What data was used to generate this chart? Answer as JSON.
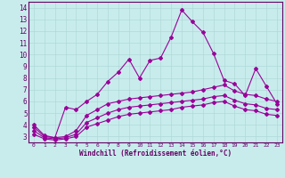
{
  "xlabel": "Windchill (Refroidissement éolien,°C)",
  "bg_color": "#c8ecec",
  "line_color": "#990099",
  "grid_color": "#b0d8d8",
  "text_color": "#660066",
  "axis_color": "#660066",
  "xlim": [
    -0.5,
    23.5
  ],
  "ylim": [
    2.5,
    14.5
  ],
  "xticks": [
    0,
    1,
    2,
    3,
    4,
    5,
    6,
    7,
    8,
    9,
    10,
    11,
    12,
    13,
    14,
    15,
    16,
    17,
    18,
    19,
    20,
    21,
    22,
    23
  ],
  "yticks": [
    3,
    4,
    5,
    6,
    7,
    8,
    9,
    10,
    11,
    12,
    13,
    14
  ],
  "line1_x": [
    0,
    1,
    2,
    3,
    4,
    5,
    6,
    7,
    8,
    9,
    10,
    11,
    12,
    13,
    14,
    15,
    16,
    17,
    18,
    19,
    20,
    21,
    22,
    23
  ],
  "line1_y": [
    4.0,
    3.1,
    2.9,
    5.5,
    5.3,
    6.0,
    6.6,
    7.7,
    8.5,
    9.6,
    8.0,
    9.5,
    9.7,
    11.5,
    13.8,
    12.8,
    11.9,
    10.1,
    7.8,
    7.5,
    6.5,
    8.8,
    7.3,
    5.8
  ],
  "line2_x": [
    0,
    1,
    2,
    3,
    4,
    5,
    6,
    7,
    8,
    9,
    10,
    11,
    12,
    13,
    14,
    15,
    16,
    17,
    18,
    19,
    20,
    21,
    22,
    23
  ],
  "line2_y": [
    3.8,
    3.0,
    2.9,
    3.0,
    3.5,
    4.8,
    5.3,
    5.8,
    6.0,
    6.2,
    6.3,
    6.4,
    6.5,
    6.6,
    6.7,
    6.8,
    7.0,
    7.2,
    7.4,
    6.9,
    6.6,
    6.5,
    6.2,
    6.0
  ],
  "line3_x": [
    0,
    1,
    2,
    3,
    4,
    5,
    6,
    7,
    8,
    9,
    10,
    11,
    12,
    13,
    14,
    15,
    16,
    17,
    18,
    19,
    20,
    21,
    22,
    23
  ],
  "line3_y": [
    3.5,
    2.9,
    2.8,
    2.9,
    3.2,
    4.2,
    4.6,
    5.0,
    5.3,
    5.5,
    5.6,
    5.7,
    5.8,
    5.9,
    6.0,
    6.1,
    6.2,
    6.4,
    6.5,
    6.1,
    5.8,
    5.7,
    5.4,
    5.3
  ],
  "line4_x": [
    0,
    1,
    2,
    3,
    4,
    5,
    6,
    7,
    8,
    9,
    10,
    11,
    12,
    13,
    14,
    15,
    16,
    17,
    18,
    19,
    20,
    21,
    22,
    23
  ],
  "line4_y": [
    3.2,
    2.8,
    2.7,
    2.8,
    3.0,
    3.8,
    4.1,
    4.4,
    4.7,
    4.9,
    5.0,
    5.1,
    5.2,
    5.3,
    5.5,
    5.6,
    5.7,
    5.9,
    6.0,
    5.6,
    5.3,
    5.2,
    4.9,
    4.8
  ]
}
